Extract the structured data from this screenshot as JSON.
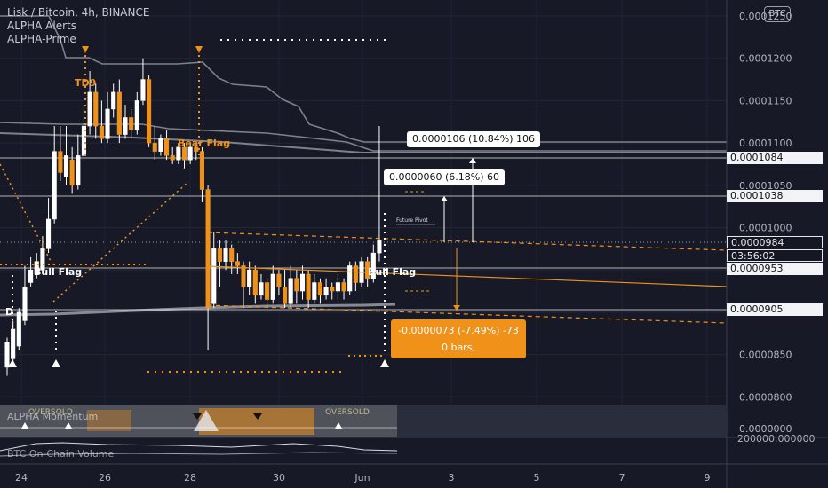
{
  "legend": {
    "title": "Lisk / Bitcoin, 4h, BINANCE",
    "line2": "ALPHA Alerts",
    "line3": "ALPHA-Prime"
  },
  "currency_badge": "BTC",
  "axis": {
    "price_ticks": [
      "0.0001250",
      "0.0001200",
      "0.0001150",
      "0.0001100",
      "0.0001050",
      "0.0001000",
      "0.0000950",
      "0.0000900",
      "0.0000850",
      "0.0000800"
    ],
    "time_ticks": [
      "24",
      "26",
      "28",
      "30",
      "Jun",
      "3",
      "5",
      "7",
      "9"
    ],
    "sub1_tick": "0.0000000",
    "sub2_tick": "200000.000000"
  },
  "price_labels": {
    "p1084": "0.0001084",
    "p1038": "0.0001038",
    "current": "0.0000984",
    "countdown": "03:56:02",
    "p953": "0.0000953",
    "p905": "0.0000905"
  },
  "measures": {
    "up_big": "0.0000106 (10.84%) 106",
    "up_small": "0.0000060 (6.18%) 60",
    "down_line1": "-0.0000073 (-7.49%) -73",
    "down_line2": "0 bars,"
  },
  "annotations": {
    "td9": "TD9",
    "bear_flag": "Bear Flag",
    "bull_flag_left": "Bull Flag",
    "bull_flag_right": "Bull Flag",
    "future_pivot": "Future Pivot",
    "d_marker": "D"
  },
  "subpanels": {
    "sub1_label": "ALPHA Momentum",
    "sub2_label": "BTC On-Chain Volume",
    "sub1_tags": [
      "OVERSOLD",
      "OVERSOLD"
    ]
  },
  "colors": {
    "background": "#171a26",
    "candle": "#f0921a",
    "wick": "#ffffff",
    "band": "#9a9ba3",
    "trend": "#f0921a"
  }
}
